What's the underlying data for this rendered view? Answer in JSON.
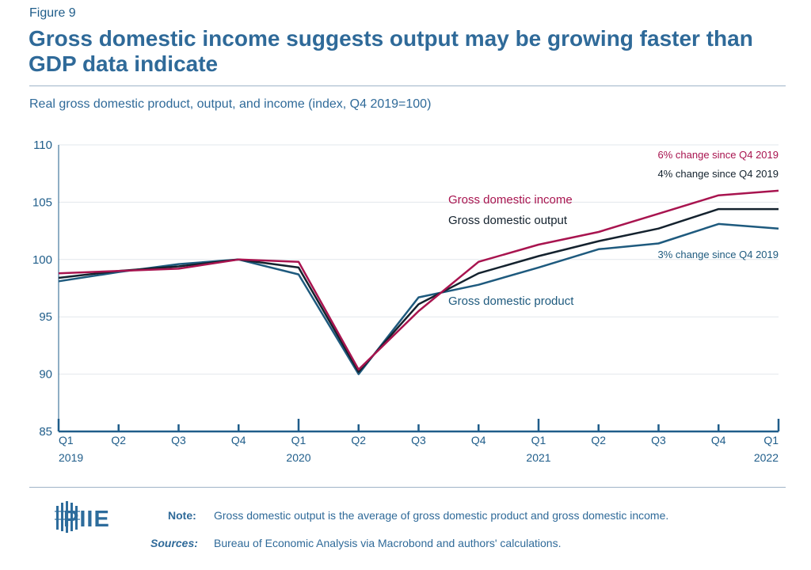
{
  "figure_label": "Figure 9",
  "title": "Gross domestic income suggests output may be growing faster than GDP data indicate",
  "subtitle": "Real gross domestic product, output, and income (index, Q4 2019=100)",
  "colors": {
    "gdi": "#a8144f",
    "gdo": "#14222e",
    "gdp": "#1e5a7e",
    "axis": "#1f5d8a",
    "grid": "#e2e7ec"
  },
  "chart_data": {
    "type": "line",
    "ylim": [
      85,
      110
    ],
    "yticks": [
      85,
      90,
      95,
      100,
      105,
      110
    ],
    "grid": true,
    "x_quarters": [
      "Q1",
      "Q2",
      "Q3",
      "Q4",
      "Q1",
      "Q2",
      "Q3",
      "Q4",
      "Q1",
      "Q2",
      "Q3",
      "Q4",
      "Q1"
    ],
    "x_years": [
      {
        "index": 0,
        "label": "2019"
      },
      {
        "index": 4,
        "label": "2020"
      },
      {
        "index": 8,
        "label": "2021"
      },
      {
        "index": 12,
        "label": "2022"
      }
    ],
    "series": [
      {
        "key": "gdp",
        "name": "Gross domestic product",
        "values": [
          98.1,
          98.9,
          99.6,
          100.0,
          98.7,
          90.0,
          96.7,
          97.8,
          99.3,
          100.9,
          101.4,
          103.1,
          102.7
        ]
      },
      {
        "key": "gdo",
        "name": "Gross domestic output",
        "values": [
          98.4,
          99.0,
          99.4,
          100.0,
          99.3,
          90.2,
          96.1,
          98.8,
          100.3,
          101.6,
          102.7,
          104.4,
          104.4
        ]
      },
      {
        "key": "gdi",
        "name": "Gross domestic income",
        "values": [
          98.8,
          99.0,
          99.2,
          100.0,
          99.8,
          90.4,
          95.5,
          99.8,
          101.3,
          102.4,
          104.0,
          105.6,
          106.0
        ]
      }
    ],
    "annotations": [
      {
        "key": "gdi",
        "text": "6% change since Q4 2019"
      },
      {
        "key": "gdo",
        "text": "4% change since Q4 2019"
      },
      {
        "key": "gdp",
        "text": "3% change since Q4 2019"
      }
    ]
  },
  "logo_text": "PIIE",
  "note": {
    "label": "Note:",
    "text": "Gross domestic output is the average of gross domestic product and gross domestic income."
  },
  "sources": {
    "label": "Sources:",
    "text": "Bureau of Economic Analysis via Macrobond and authors' calculations."
  }
}
